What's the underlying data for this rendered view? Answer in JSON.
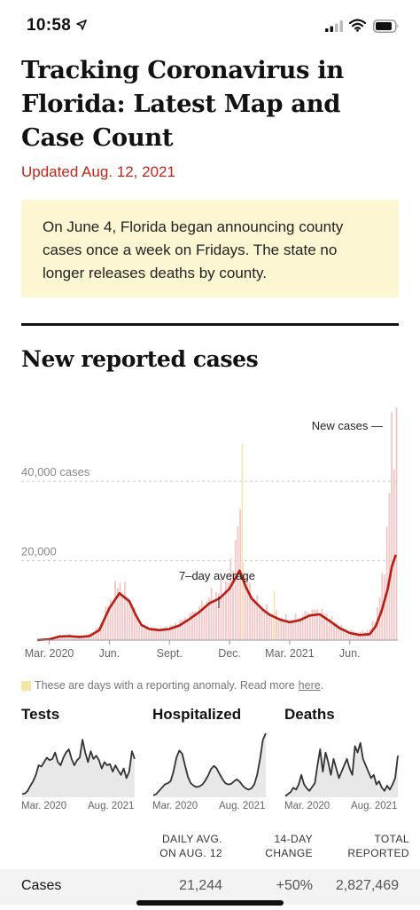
{
  "status_bar": {
    "time": "10:58"
  },
  "article": {
    "headline": "Tracking Coronavirus in Florida: Latest Map and Case Count",
    "updated": "Updated Aug. 12, 2021",
    "notice": "On June 4, Florida began announcing county cases once a week on Fridays. The state no longer releases deaths by county."
  },
  "cases_section": {
    "title": "New reported cases",
    "anomaly_note": "These are days with a reporting anomaly. Read more",
    "anomaly_link": "here",
    "anomaly_suffix": ".",
    "colors": {
      "bars": "#f3c6c6",
      "avg_line": "#b81d13",
      "anomaly": "#f6e6a6"
    }
  },
  "chart_data": [
    {
      "type": "area",
      "title": "New reported cases",
      "y_tick_labels": [
        "40,000 cases",
        "20,000"
      ],
      "y_ticks": [
        40000,
        20000
      ],
      "ylim": [
        0,
        53000
      ],
      "x_tick_labels": [
        "Mar. 2020",
        "Jun.",
        "Sept.",
        "Dec.",
        "Mar. 2021",
        "Jun."
      ],
      "x_ticks_month": [
        0,
        3,
        6,
        9,
        12,
        15
      ],
      "xlim_month": [
        -0.6,
        17.4
      ],
      "annotations": {
        "seven_day": "7–day average",
        "new_cases": "New cases —"
      },
      "series": [
        {
          "name": "7-day average",
          "x_month": [
            -0.6,
            0,
            0.5,
            1,
            1.5,
            2,
            2.5,
            3,
            3.5,
            4,
            4.3,
            4.6,
            5,
            5.5,
            6,
            6.5,
            7,
            7.5,
            8,
            8.5,
            9,
            9.5,
            9.8,
            10.1,
            10.4,
            10.7,
            11,
            11.5,
            12,
            12.5,
            13,
            13.5,
            14,
            14.5,
            15,
            15.5,
            16,
            16.3,
            16.6,
            16.9,
            17.1,
            17.3
          ],
          "values": [
            0,
            200,
            900,
            1000,
            800,
            1000,
            2500,
            8000,
            11800,
            9800,
            6500,
            3800,
            2800,
            2500,
            2800,
            3700,
            5300,
            7100,
            9300,
            10500,
            13000,
            17500,
            13500,
            10500,
            9000,
            7500,
            6400,
            5200,
            4500,
            5000,
            6200,
            6500,
            4800,
            3000,
            1800,
            1300,
            1500,
            3500,
            7500,
            13000,
            18500,
            21500
          ]
        },
        {
          "name": "New cases",
          "x_month": [
            -0.6,
            0,
            0.5,
            1,
            1.5,
            2,
            2.5,
            3,
            3.5,
            4,
            4.5,
            5,
            5.5,
            6,
            6.5,
            7,
            7.5,
            8,
            8.5,
            9,
            9.5,
            9.8,
            10.1,
            10.5,
            11,
            11.5,
            12,
            12.5,
            13,
            13.5,
            14,
            14.5,
            15,
            15.5,
            16,
            16.3,
            16.6,
            16.9,
            17.1,
            17.3
          ],
          "values": [
            0,
            300,
            1100,
            1300,
            1000,
            1400,
            3300,
            9500,
            14500,
            10500,
            4000,
            3300,
            2900,
            3300,
            4500,
            6200,
            8200,
            11000,
            12500,
            15500,
            31000,
            16000,
            12500,
            9000,
            7000,
            5800,
            5300,
            6000,
            7200,
            7500,
            5600,
            3500,
            2300,
            1900,
            2600,
            6000,
            13500,
            29000,
            50000,
            56000
          ]
        }
      ]
    },
    {
      "type": "line",
      "title": "Tests",
      "x_tick_labels": [
        "Mar. 2020",
        "Aug. 2021"
      ],
      "values": [
        0.05,
        0.06,
        0.1,
        0.18,
        0.25,
        0.35,
        0.5,
        0.48,
        0.55,
        0.62,
        0.58,
        0.6,
        0.7,
        0.55,
        0.5,
        0.62,
        0.7,
        0.75,
        0.6,
        0.5,
        0.58,
        0.62,
        0.9,
        0.7,
        0.55,
        0.72,
        0.6,
        0.65,
        0.58,
        0.45,
        0.55,
        0.5,
        0.52,
        0.4,
        0.5,
        0.42,
        0.35,
        0.45,
        0.3,
        0.4,
        0.72,
        0.6
      ]
    },
    {
      "type": "line",
      "title": "Hospitalized",
      "x_tick_labels": [
        "Mar. 2020",
        "Aug. 2021"
      ],
      "values": [
        0.03,
        0.05,
        0.1,
        0.15,
        0.2,
        0.22,
        0.25,
        0.4,
        0.62,
        0.73,
        0.68,
        0.5,
        0.32,
        0.22,
        0.18,
        0.16,
        0.17,
        0.2,
        0.26,
        0.34,
        0.44,
        0.49,
        0.45,
        0.36,
        0.28,
        0.22,
        0.2,
        0.21,
        0.25,
        0.28,
        0.24,
        0.18,
        0.14,
        0.12,
        0.14,
        0.2,
        0.35,
        0.6,
        0.9,
        1.0
      ]
    },
    {
      "type": "line",
      "title": "Deaths",
      "x_tick_labels": [
        "Mar. 2020",
        "Aug. 2021"
      ],
      "values": [
        0.02,
        0.05,
        0.08,
        0.15,
        0.12,
        0.2,
        0.35,
        0.2,
        0.14,
        0.1,
        0.16,
        0.22,
        0.5,
        0.75,
        0.4,
        0.7,
        0.55,
        0.35,
        0.6,
        0.45,
        0.3,
        0.4,
        0.5,
        0.6,
        0.45,
        0.35,
        0.8,
        0.7,
        0.85,
        0.6,
        0.5,
        0.4,
        0.3,
        0.35,
        0.2,
        0.25,
        0.15,
        0.1,
        0.18,
        0.12,
        0.2,
        0.3,
        0.65
      ]
    }
  ],
  "summary_table": {
    "headers": {
      "daily_line1": "DAILY AVG.",
      "daily_line2": "ON AUG. 12",
      "change_line1": "14-DAY",
      "change_line2": "CHANGE",
      "total_line1": "TOTAL",
      "total_line2": "REPORTED"
    },
    "rows": [
      {
        "label": "Cases",
        "daily_avg": "21,244",
        "change": "+50%",
        "total": "2,827,469"
      }
    ]
  }
}
